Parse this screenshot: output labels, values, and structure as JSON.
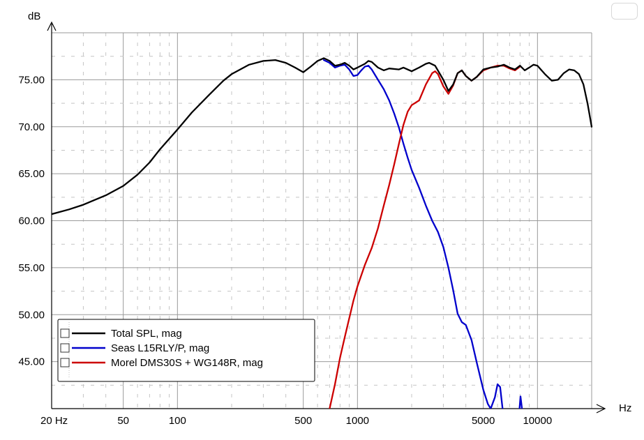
{
  "chart_data": {
    "type": "line",
    "x_scale": "log",
    "xlim": [
      20,
      20000
    ],
    "ylim": [
      40,
      80
    ],
    "yunit": "dB",
    "xunit": "Hz",
    "grid": true,
    "legend_position": "bottom-left",
    "y_ticks": [
      {
        "value": 75,
        "label": "75.00"
      },
      {
        "value": 70,
        "label": "70.00"
      },
      {
        "value": 65,
        "label": "65.00"
      },
      {
        "value": 60,
        "label": "60.00"
      },
      {
        "value": 55,
        "label": "55.00"
      },
      {
        "value": 50,
        "label": "50.00"
      },
      {
        "value": 45,
        "label": "45.00"
      }
    ],
    "x_ticks": [
      {
        "value": 20,
        "label": "20 Hz"
      },
      {
        "value": 50,
        "label": "50"
      },
      {
        "value": 100,
        "label": "100"
      },
      {
        "value": 500,
        "label": "500"
      },
      {
        "value": 1000,
        "label": "1000"
      },
      {
        "value": 5000,
        "label": "5000"
      },
      {
        "value": 10000,
        "label": "10000"
      }
    ],
    "series": [
      {
        "name": "Total SPL, mag",
        "color": "#000000",
        "points": [
          [
            20,
            60.7
          ],
          [
            25,
            61.2
          ],
          [
            30,
            61.7
          ],
          [
            40,
            62.7
          ],
          [
            50,
            63.7
          ],
          [
            60,
            64.9
          ],
          [
            70,
            66.2
          ],
          [
            80,
            67.6
          ],
          [
            100,
            69.7
          ],
          [
            120,
            71.5
          ],
          [
            150,
            73.4
          ],
          [
            180,
            74.9
          ],
          [
            200,
            75.6
          ],
          [
            250,
            76.6
          ],
          [
            300,
            77.0
          ],
          [
            350,
            77.1
          ],
          [
            400,
            76.8
          ],
          [
            450,
            76.3
          ],
          [
            500,
            75.8
          ],
          [
            550,
            76.4
          ],
          [
            600,
            77.0
          ],
          [
            650,
            77.3
          ],
          [
            700,
            77.0
          ],
          [
            750,
            76.5
          ],
          [
            800,
            76.6
          ],
          [
            850,
            76.8
          ],
          [
            900,
            76.5
          ],
          [
            950,
            76.1
          ],
          [
            1000,
            76.3
          ],
          [
            1100,
            76.7
          ],
          [
            1150,
            77.0
          ],
          [
            1200,
            76.9
          ],
          [
            1300,
            76.3
          ],
          [
            1400,
            76.0
          ],
          [
            1500,
            76.2
          ],
          [
            1700,
            76.1
          ],
          [
            1800,
            76.3
          ],
          [
            2000,
            75.9
          ],
          [
            2200,
            76.3
          ],
          [
            2400,
            76.7
          ],
          [
            2500,
            76.8
          ],
          [
            2700,
            76.5
          ],
          [
            3000,
            75.0
          ],
          [
            3200,
            73.8
          ],
          [
            3400,
            74.5
          ],
          [
            3600,
            75.7
          ],
          [
            3800,
            76.0
          ],
          [
            4000,
            75.4
          ],
          [
            4300,
            74.9
          ],
          [
            4600,
            75.3
          ],
          [
            5000,
            76.1
          ],
          [
            5500,
            76.3
          ],
          [
            6000,
            76.4
          ],
          [
            6500,
            76.6
          ],
          [
            7000,
            76.3
          ],
          [
            7500,
            76.1
          ],
          [
            8000,
            76.5
          ],
          [
            8500,
            76.0
          ],
          [
            9000,
            76.3
          ],
          [
            9500,
            76.6
          ],
          [
            10000,
            76.5
          ],
          [
            11000,
            75.6
          ],
          [
            12000,
            74.9
          ],
          [
            13000,
            75.0
          ],
          [
            14000,
            75.7
          ],
          [
            15000,
            76.1
          ],
          [
            16000,
            76.0
          ],
          [
            17000,
            75.6
          ],
          [
            18000,
            74.5
          ],
          [
            19000,
            72.4
          ],
          [
            20000,
            70.0
          ]
        ]
      },
      {
        "name": "Seas L15RLY/P, mag",
        "color": "#0000cc",
        "points": [
          [
            650,
            77.1
          ],
          [
            700,
            76.8
          ],
          [
            750,
            76.3
          ],
          [
            800,
            76.5
          ],
          [
            850,
            76.6
          ],
          [
            900,
            76.1
          ],
          [
            950,
            75.4
          ],
          [
            1000,
            75.5
          ],
          [
            1050,
            76.0
          ],
          [
            1100,
            76.4
          ],
          [
            1150,
            76.5
          ],
          [
            1200,
            76.1
          ],
          [
            1300,
            75.0
          ],
          [
            1400,
            74.0
          ],
          [
            1500,
            72.8
          ],
          [
            1600,
            71.4
          ],
          [
            1700,
            69.9
          ],
          [
            1800,
            68.2
          ],
          [
            1900,
            66.7
          ],
          [
            2000,
            65.4
          ],
          [
            2200,
            63.5
          ],
          [
            2400,
            61.6
          ],
          [
            2600,
            60.0
          ],
          [
            2800,
            58.8
          ],
          [
            3000,
            57.2
          ],
          [
            3200,
            55.0
          ],
          [
            3400,
            52.6
          ],
          [
            3600,
            50.1
          ],
          [
            3800,
            49.2
          ],
          [
            4000,
            48.9
          ],
          [
            4300,
            47.3
          ],
          [
            4600,
            44.9
          ],
          [
            5000,
            42.0
          ],
          [
            5300,
            40.5
          ],
          [
            5500,
            40.0
          ],
          [
            5800,
            41.2
          ],
          [
            6000,
            42.6
          ],
          [
            6200,
            42.3
          ],
          [
            6400,
            40.0
          ]
        ]
      },
      {
        "name": "Seas L15RLY/P, mag",
        "color": "#0000cc",
        "points": [
          [
            7950,
            40.0
          ],
          [
            8050,
            41.3
          ],
          [
            8200,
            40.0
          ]
        ]
      },
      {
        "name": "Morel DMS30S + WG148R, mag",
        "color": "#cc0000",
        "points": [
          [
            700,
            40.0
          ],
          [
            750,
            42.6
          ],
          [
            800,
            45.4
          ],
          [
            850,
            47.6
          ],
          [
            900,
            49.6
          ],
          [
            950,
            51.5
          ],
          [
            1000,
            53.0
          ],
          [
            1100,
            55.3
          ],
          [
            1200,
            57.1
          ],
          [
            1300,
            59.2
          ],
          [
            1400,
            61.6
          ],
          [
            1500,
            63.8
          ],
          [
            1600,
            66.0
          ],
          [
            1700,
            68.2
          ],
          [
            1800,
            70.2
          ],
          [
            1900,
            71.6
          ],
          [
            2000,
            72.3
          ],
          [
            2200,
            72.8
          ],
          [
            2400,
            74.5
          ],
          [
            2600,
            75.7
          ],
          [
            2700,
            75.9
          ],
          [
            2800,
            75.6
          ],
          [
            3000,
            74.3
          ],
          [
            3200,
            73.5
          ],
          [
            3400,
            74.4
          ],
          [
            3600,
            75.7
          ],
          [
            3800,
            76.0
          ],
          [
            4000,
            75.4
          ],
          [
            4300,
            74.9
          ],
          [
            4600,
            75.3
          ],
          [
            5000,
            76.0
          ],
          [
            5500,
            76.3
          ],
          [
            6000,
            76.5
          ],
          [
            6500,
            76.5
          ],
          [
            7000,
            76.2
          ],
          [
            7500,
            76.0
          ],
          [
            8000,
            76.4
          ]
        ]
      }
    ],
    "legend": [
      {
        "label": "Total SPL, mag",
        "color": "#000000"
      },
      {
        "label": "Seas L15RLY/P, mag",
        "color": "#0000cc"
      },
      {
        "label": "Morel DMS30S + WG148R, mag",
        "color": "#cc0000"
      }
    ]
  }
}
